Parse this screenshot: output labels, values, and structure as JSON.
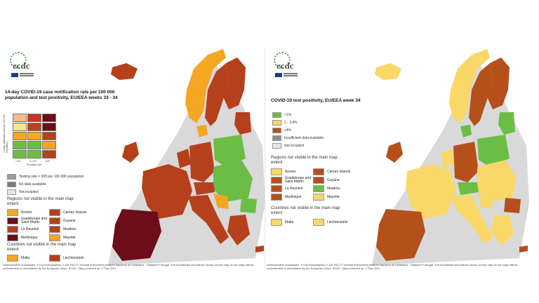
{
  "left": {
    "title": "14-day COVID-19 case notification rate per 100 000 population and test positivity, EU/EEA weeks 33 - 34",
    "y_axis_label": "14-day notification rate per 100 000 population",
    "x_axis_label": "Positivity rate",
    "x_ticks": [
      "<1%",
      "1-<4%",
      "≥4%"
    ],
    "legend": [
      {
        "label": "Testing rate < 300 per 100 000 population",
        "color": "#9b9b9b"
      },
      {
        "label": "No data available",
        "color": "#7b7b7b"
      },
      {
        "label": "Not included",
        "color": "#e6e6e6"
      }
    ],
    "regions_heading": "Regions not visible in the main map extent",
    "regions": [
      {
        "label": "Azores",
        "color": "#f5a623"
      },
      {
        "label": "Canary Islands",
        "color": "#b5401b"
      },
      {
        "label": "Guadeloupe and Saint Martin",
        "color": "#6e0d1a"
      },
      {
        "label": "Guyane",
        "color": "#b5401b"
      },
      {
        "label": "La Reunion",
        "color": "#b5401b"
      },
      {
        "label": "Madeira",
        "color": "#b5401b"
      },
      {
        "label": "Martinique",
        "color": "#6e0d1a"
      },
      {
        "label": "Mayotte",
        "color": "#f5a623"
      }
    ],
    "countries_heading": "Countries not visible in the main map extent",
    "countries": [
      {
        "label": "Malta",
        "color": "#f5a623"
      },
      {
        "label": "Liechtenstein",
        "color": "#b5401b"
      }
    ],
    "footer": "Administrative boundaries: © EuroGeographics © UN-FAO © Turkstat [Kartverket] Instituto Nacional de Estatistica - Statistics Portugal. The boundaries and names shown on this map do not imply official endorsement or acceptance by the European Union. ECDC. Map produced on: 2 Sep 2021"
  },
  "right": {
    "title": "COVID-19 test positivity, EU/EEA week 34",
    "legend": [
      {
        "label": "<1%",
        "color": "#6cbd45"
      },
      {
        "label": "1 - 3.9%",
        "color": "#f9d868"
      },
      {
        "label": "≥4%",
        "color": "#b5501b"
      },
      {
        "label": "Insufficient data available",
        "color": "#8c8c8c"
      },
      {
        "label": "Not included",
        "color": "#e6e6e6"
      }
    ],
    "regions_heading": "Regions not visible in the main map extent",
    "regions": [
      {
        "label": "Azores",
        "color": "#f9d868"
      },
      {
        "label": "Canary Islands",
        "color": "#b5501b"
      },
      {
        "label": "Guadeloupe and Saint Martin",
        "color": "#b5501b"
      },
      {
        "label": "Guyane",
        "color": "#b5501b"
      },
      {
        "label": "La Reunion",
        "color": "#b5501b"
      },
      {
        "label": "Madeira",
        "color": "#6cbd45"
      },
      {
        "label": "Martinique",
        "color": "#b5501b"
      },
      {
        "label": "Mayotte",
        "color": "#f9d868"
      }
    ],
    "countries_heading": "Countries not visible in the main map extent",
    "countries": [
      {
        "label": "Malta",
        "color": "#f9d868"
      },
      {
        "label": "Liechtenstein",
        "color": "#f9d868"
      }
    ],
    "footer": "Administrative boundaries: © EuroGeographics © UN-FAO © Turkstat [Kartverket] Instituto Nacional de Estatistica - Statistics Portugal. The boundaries and names shown on this map do not imply official endorsement or acceptance by the European Union. ECDC. Map produced on: 2 Sep 2021"
  },
  "logo_text": "ecdc",
  "colors": {
    "non_eu": "#d9d9d9",
    "sea": "#ffffff",
    "border": "#ffffff"
  }
}
